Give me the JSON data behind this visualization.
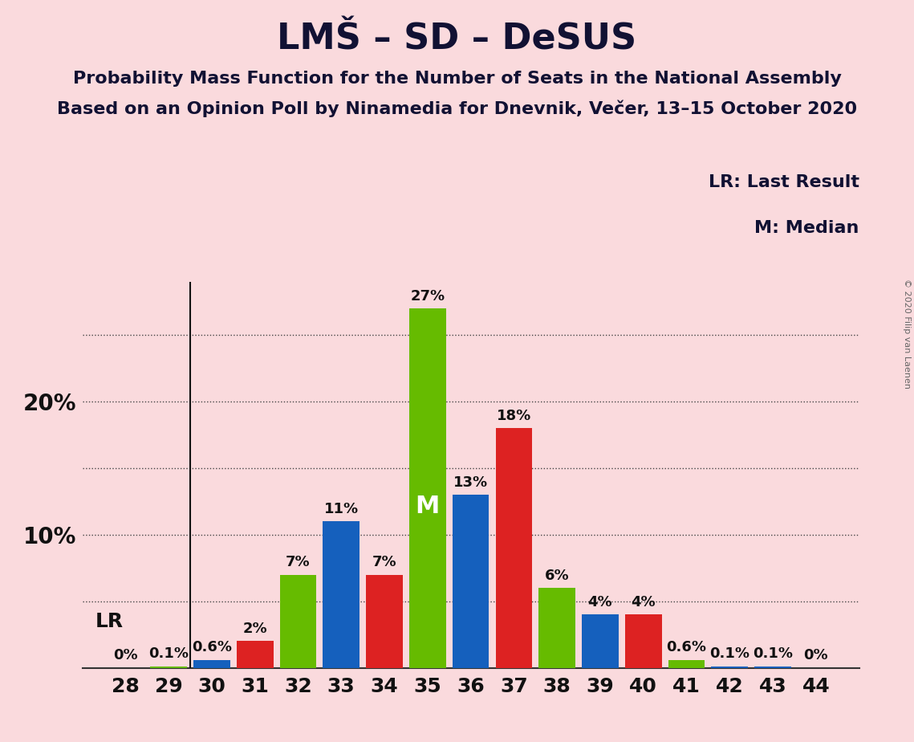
{
  "title": "LMŠ – SD – DeSUS",
  "subtitle1": "Probability Mass Function for the Number of Seats in the National Assembly",
  "subtitle2": "Based on an Opinion Poll by Ninamedia for Dnevnik, Večer, 13–15 October 2020",
  "copyright": "© 2020 Filip van Laenen",
  "legend1": "LR: Last Result",
  "legend2": "M: Median",
  "lr_label": "LR",
  "median_label": "M",
  "median_seat": 35,
  "lr_seat": 30,
  "background_color": "#fadadd",
  "bar_color_green": "#66bb00",
  "bar_color_blue": "#1560bd",
  "bar_color_red": "#dd2222",
  "seats": [
    28,
    29,
    30,
    31,
    32,
    33,
    34,
    35,
    36,
    37,
    38,
    39,
    40,
    41,
    42,
    43,
    44
  ],
  "values": [
    0.0,
    0.1,
    0.6,
    2.0,
    7.0,
    11.0,
    7.0,
    27.0,
    13.0,
    18.0,
    6.0,
    4.0,
    4.0,
    0.6,
    0.1,
    0.1,
    0.0
  ],
  "colors": [
    "#66bb00",
    "#66bb00",
    "#1560bd",
    "#dd2222",
    "#66bb00",
    "#1560bd",
    "#dd2222",
    "#66bb00",
    "#1560bd",
    "#dd2222",
    "#66bb00",
    "#1560bd",
    "#dd2222",
    "#66bb00",
    "#1560bd",
    "#1560bd",
    "#66bb00"
  ],
  "bar_labels": [
    "0%",
    "0.1%",
    "0.6%",
    "2%",
    "7%",
    "11%",
    "7%",
    "27%",
    "13%",
    "18%",
    "6%",
    "4%",
    "4%",
    "0.6%",
    "0.1%",
    "0.1%",
    "0%"
  ],
  "ylim": [
    0,
    29
  ],
  "dotted_y": [
    5,
    10,
    15,
    20,
    25
  ]
}
